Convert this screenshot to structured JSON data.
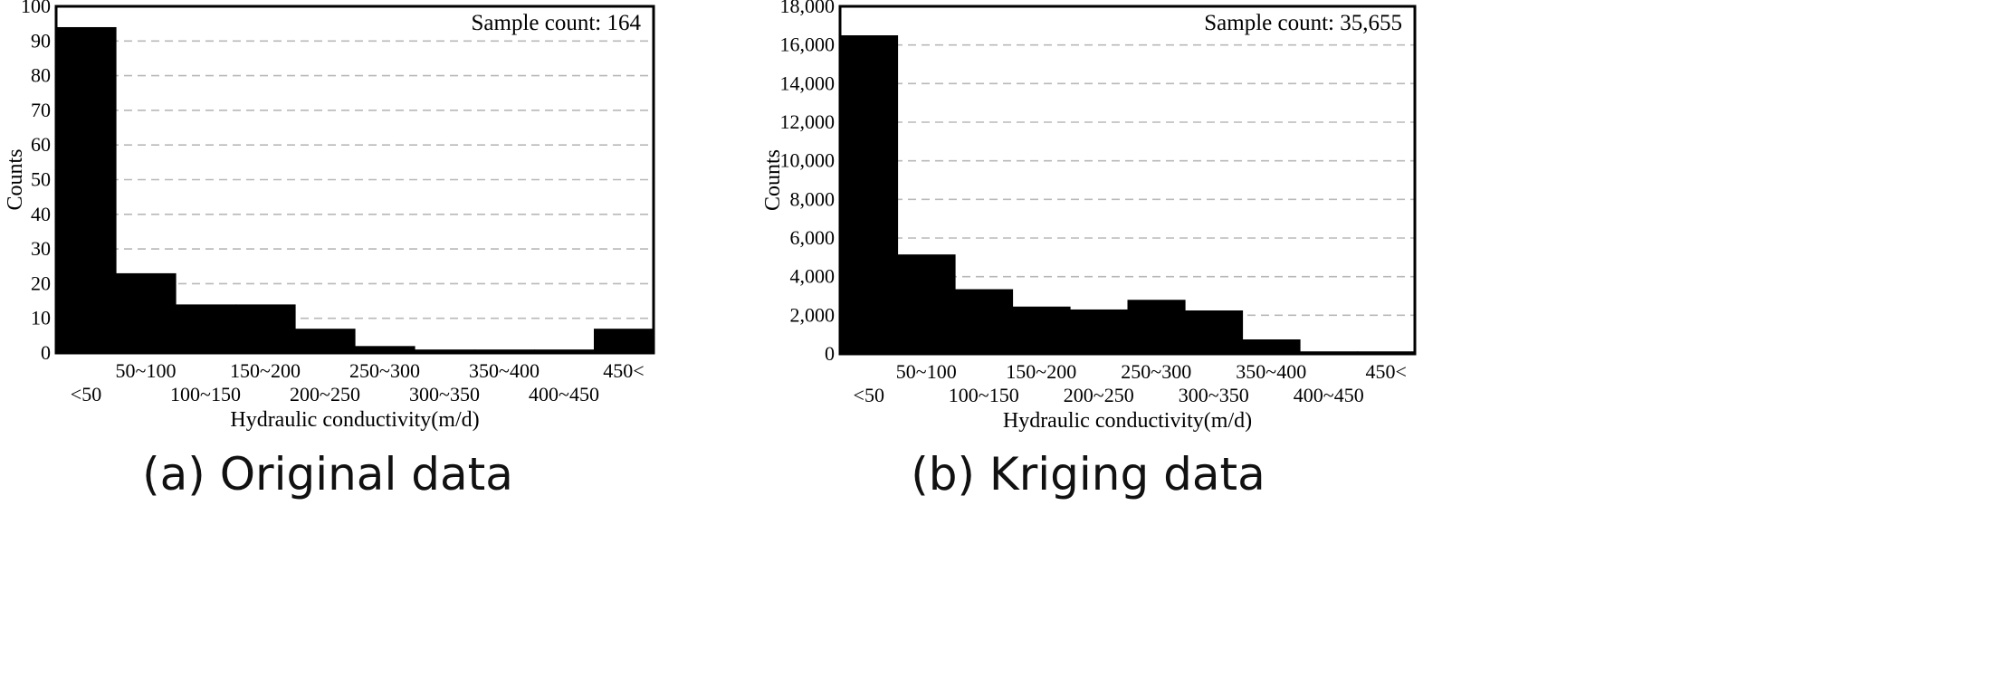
{
  "chart_data": [
    {
      "type": "bar",
      "caption": "(a) Original data",
      "annotation": "Sample count: 164",
      "xlabel": "Hydraulic conductivity(m/d)",
      "ylabel": "Counts",
      "categories": [
        "<50",
        "50~100",
        "100~150",
        "150~200",
        "200~250",
        "250~300",
        "300~350",
        "350~400",
        "400~450",
        "450<"
      ],
      "values": [
        94,
        23,
        14,
        14,
        7,
        2,
        1,
        1,
        1,
        7
      ],
      "ylim": [
        0,
        100
      ],
      "yticks": [
        0,
        10,
        20,
        30,
        40,
        50,
        60,
        70,
        80,
        90,
        100
      ],
      "ytick_labels": [
        "0",
        "10",
        "20",
        "30",
        "40",
        "50",
        "60",
        "70",
        "80",
        "90",
        "100"
      ],
      "grid": true,
      "color": "#000000"
    },
    {
      "type": "bar",
      "caption": "(b) Kriging data",
      "annotation": "Sample count: 35,655",
      "xlabel": "Hydraulic conductivity(m/d)",
      "ylabel": "Counts",
      "categories": [
        "<50",
        "50~100",
        "100~150",
        "150~200",
        "200~250",
        "250~300",
        "300~350",
        "350~400",
        "400~450",
        "450<"
      ],
      "values": [
        16500,
        5150,
        3350,
        2450,
        2300,
        2800,
        2250,
        750,
        130,
        130
      ],
      "ylim": [
        0,
        18000
      ],
      "yticks": [
        0,
        2000,
        4000,
        6000,
        8000,
        10000,
        12000,
        14000,
        16000,
        18000
      ],
      "ytick_labels": [
        "0",
        "2,000",
        "4,000",
        "6,000",
        "8,000",
        "10,000",
        "12,000",
        "14,000",
        "16,000",
        "18,000"
      ],
      "grid": true,
      "color": "#000000"
    }
  ]
}
